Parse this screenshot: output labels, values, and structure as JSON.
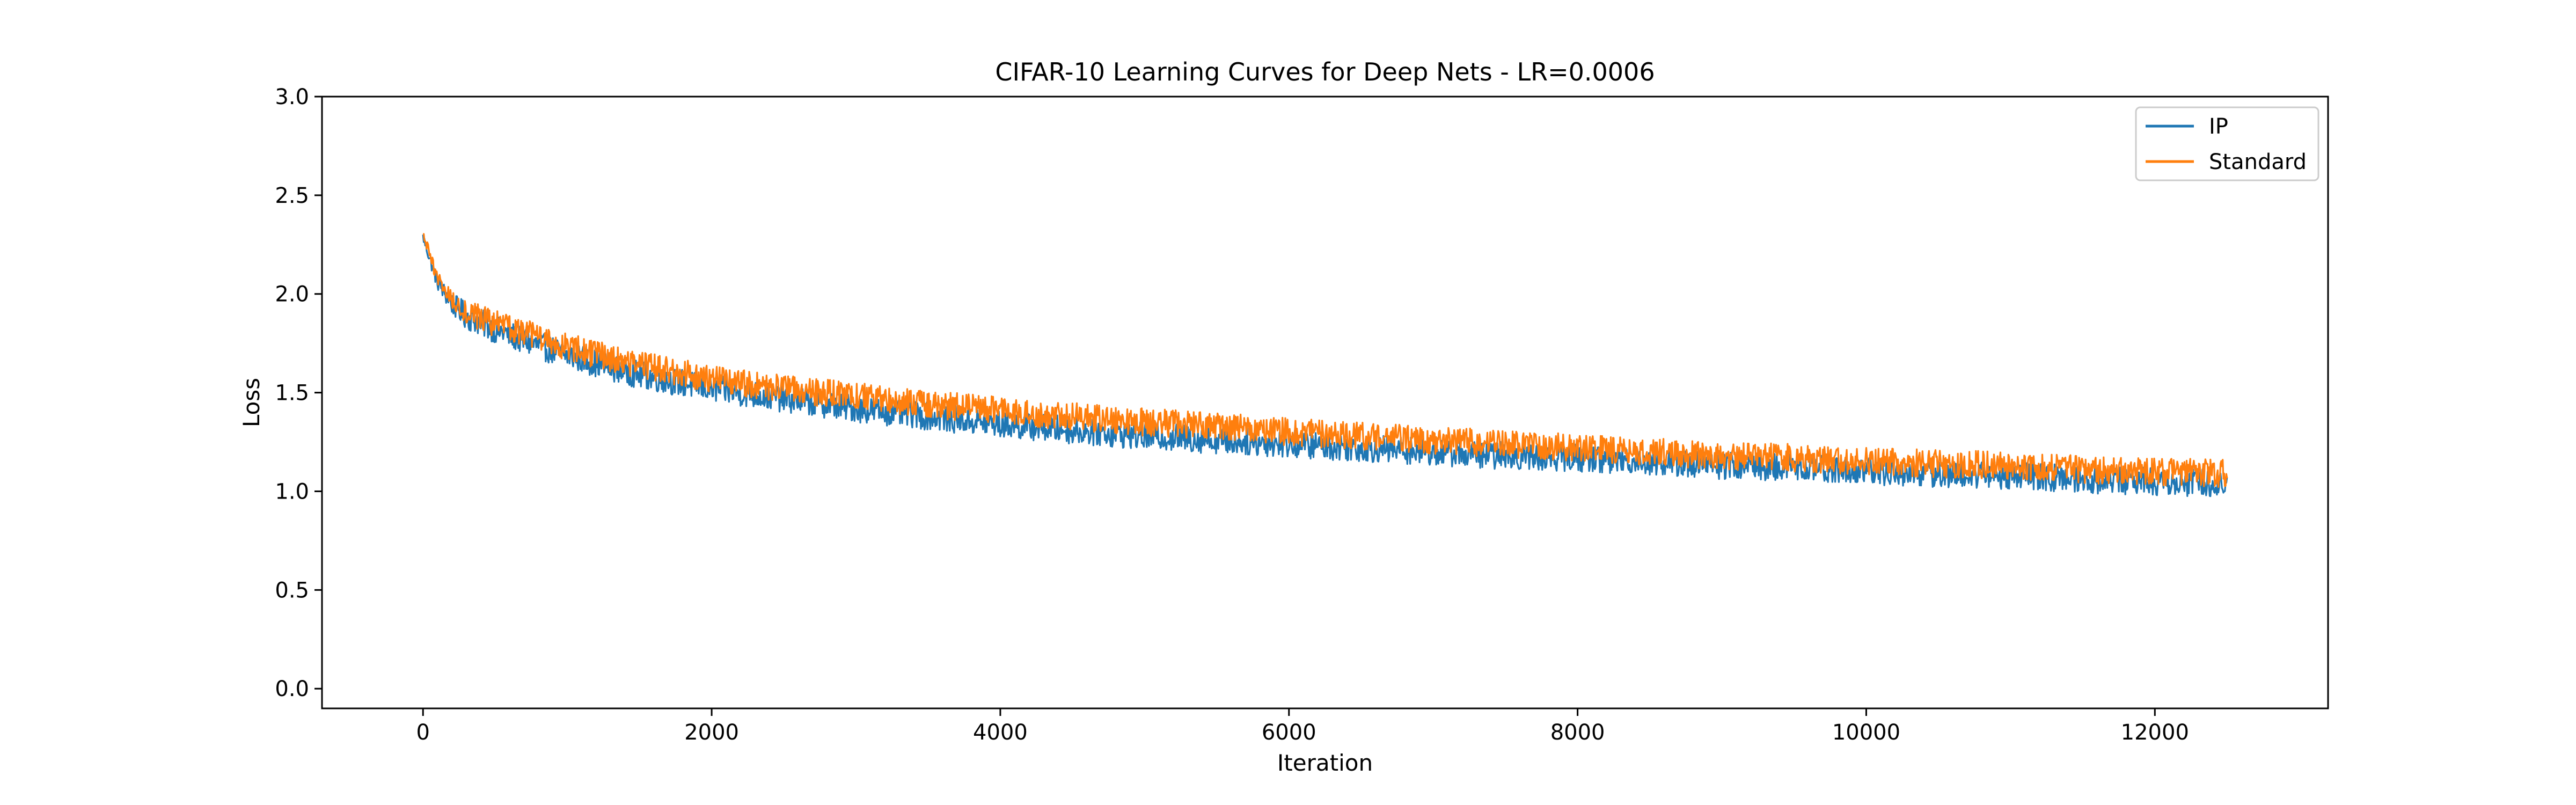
{
  "chart_data": {
    "type": "line",
    "title": "CIFAR-10 Learning Curves for Deep Nets - LR=0.0006",
    "xlabel": "Iteration",
    "ylabel": "Loss",
    "xlim": [
      -700,
      13200
    ],
    "ylim": [
      -0.1,
      3.0
    ],
    "xticks": [
      0,
      2000,
      4000,
      6000,
      8000,
      10000,
      12000
    ],
    "xtick_labels": [
      "0",
      "2000",
      "4000",
      "6000",
      "8000",
      "10000",
      "12000"
    ],
    "yticks": [
      0.0,
      0.5,
      1.0,
      1.5,
      2.0,
      2.5,
      3.0
    ],
    "ytick_labels": [
      "0.0",
      "0.5",
      "1.0",
      "1.5",
      "2.0",
      "2.5",
      "3.0"
    ],
    "grid": false,
    "legend_position": "top-right",
    "x_max": 12500,
    "noise_amplitude": 0.07,
    "series": [
      {
        "name": "IP",
        "color": "#1f77b4",
        "x": [
          0,
          50,
          100,
          200,
          300,
          500,
          750,
          1000,
          1500,
          2000,
          2500,
          3000,
          3500,
          4000,
          4500,
          5000,
          5500,
          6000,
          6500,
          7000,
          7500,
          8000,
          8500,
          9000,
          9500,
          10000,
          10500,
          11000,
          11500,
          12000,
          12500
        ],
        "values": [
          2.29,
          2.17,
          2.06,
          1.95,
          1.89,
          1.82,
          1.75,
          1.69,
          1.59,
          1.52,
          1.47,
          1.42,
          1.38,
          1.34,
          1.31,
          1.28,
          1.26,
          1.24,
          1.22,
          1.2,
          1.18,
          1.17,
          1.15,
          1.13,
          1.12,
          1.1,
          1.09,
          1.08,
          1.06,
          1.05,
          1.04
        ]
      },
      {
        "name": "Standard",
        "color": "#ff7f0e",
        "x": [
          0,
          50,
          100,
          200,
          300,
          500,
          750,
          1000,
          1500,
          2000,
          2500,
          3000,
          3500,
          4000,
          4500,
          5000,
          5500,
          6000,
          6500,
          7000,
          7500,
          8000,
          8500,
          9000,
          9500,
          10000,
          10500,
          11000,
          11500,
          12000,
          12500
        ],
        "values": [
          2.3,
          2.19,
          2.08,
          1.97,
          1.91,
          1.85,
          1.79,
          1.73,
          1.64,
          1.57,
          1.52,
          1.48,
          1.44,
          1.41,
          1.38,
          1.35,
          1.33,
          1.3,
          1.28,
          1.26,
          1.24,
          1.22,
          1.2,
          1.18,
          1.17,
          1.15,
          1.14,
          1.13,
          1.11,
          1.1,
          1.09
        ]
      }
    ]
  }
}
